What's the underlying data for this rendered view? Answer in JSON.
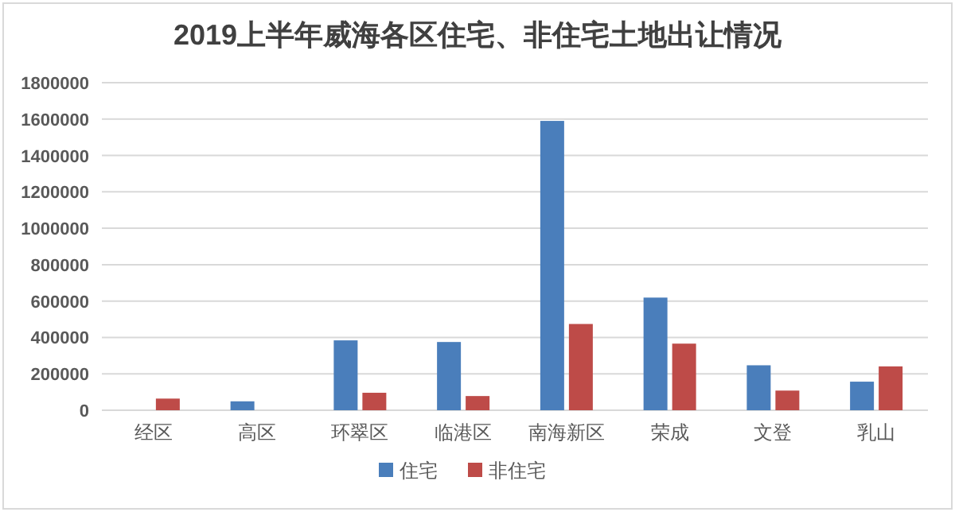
{
  "chart_data": {
    "type": "bar",
    "title": "2019上半年威海各区住宅、非住宅土地出让情况",
    "categories": [
      "经区",
      "高区",
      "环翠区",
      "临港区",
      "南海新区",
      "荣成",
      "文登",
      "乳山"
    ],
    "series": [
      {
        "name": "住宅",
        "color": "#4a7ebb",
        "values": [
          0,
          49000,
          384000,
          375000,
          1590000,
          619000,
          247000,
          157000
        ]
      },
      {
        "name": "非住宅",
        "color": "#be4b48",
        "values": [
          64000,
          0,
          96000,
          78000,
          474000,
          366000,
          108000,
          241000
        ]
      }
    ],
    "ylim": [
      0,
      1800000
    ],
    "yticks": [
      0,
      200000,
      400000,
      600000,
      800000,
      1000000,
      1200000,
      1400000,
      1600000,
      1800000
    ],
    "grid": "y",
    "legend": "bottom"
  }
}
